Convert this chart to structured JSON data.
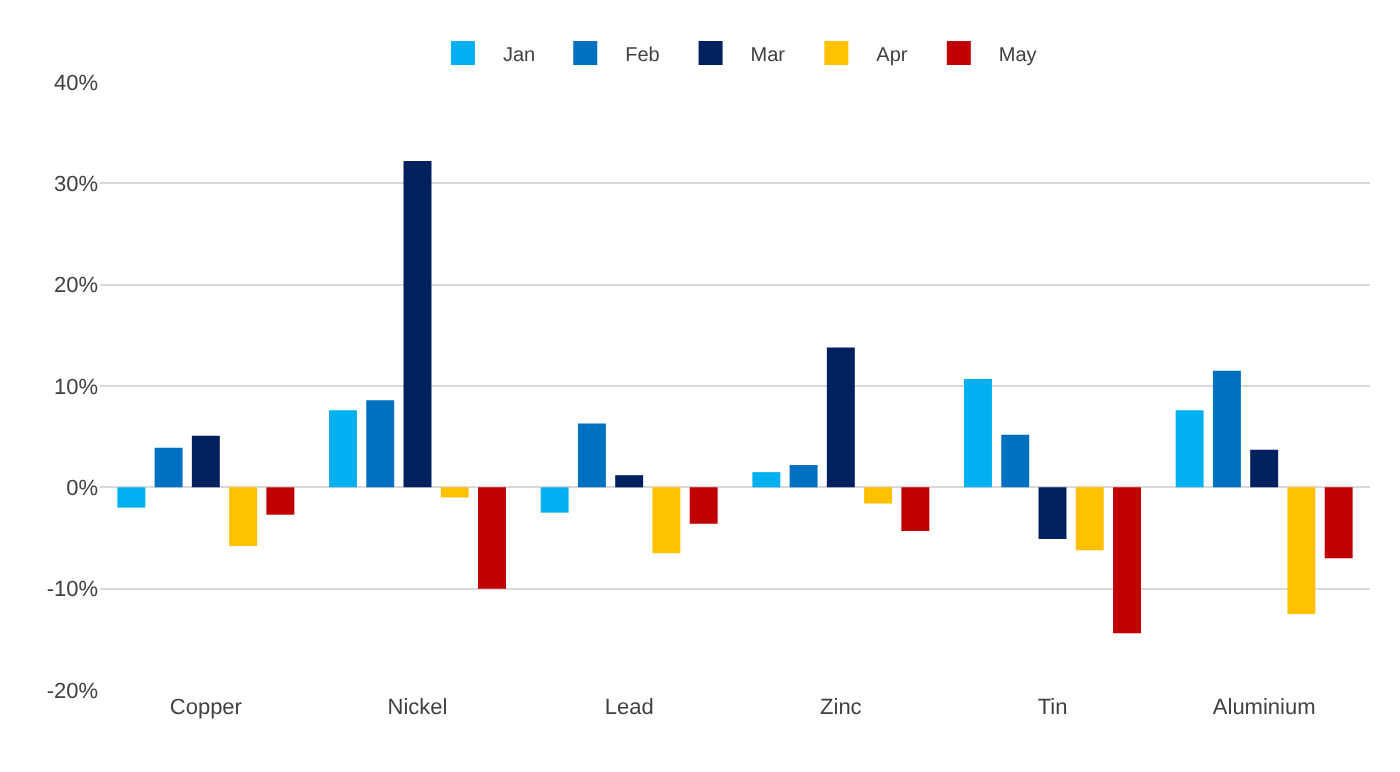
{
  "chart_data": {
    "type": "bar",
    "categories": [
      "Copper",
      "Nickel",
      "Lead",
      "Zinc",
      "Tin",
      "Aluminium"
    ],
    "series": [
      {
        "name": "Jan",
        "color": "#00b0f0",
        "values": [
          -2.0,
          7.6,
          -2.5,
          1.5,
          10.7,
          7.6
        ]
      },
      {
        "name": "Feb",
        "color": "#0070c0",
        "values": [
          3.9,
          8.6,
          6.3,
          2.2,
          5.2,
          11.5
        ]
      },
      {
        "name": "Mar",
        "color": "#002060",
        "values": [
          5.1,
          32.2,
          1.2,
          13.8,
          -5.1,
          3.7
        ]
      },
      {
        "name": "Apr",
        "color": "#ffc000",
        "values": [
          -5.8,
          -1.0,
          -6.5,
          -1.6,
          -6.2,
          -12.5
        ]
      },
      {
        "name": "May",
        "color": "#c00000",
        "values": [
          -2.7,
          -10.0,
          -3.6,
          -4.3,
          -14.4,
          -7.0
        ]
      }
    ],
    "ylim": [
      -20,
      40
    ],
    "yticks": [
      {
        "value": -20,
        "label": "-20%"
      },
      {
        "value": -10,
        "label": "-10%"
      },
      {
        "value": 0,
        "label": "0%"
      },
      {
        "value": 10,
        "label": "10%"
      },
      {
        "value": 20,
        "label": "20%"
      },
      {
        "value": 30,
        "label": "30%"
      },
      {
        "value": 40,
        "label": "40%"
      }
    ],
    "grid": "y",
    "legend": "top"
  }
}
